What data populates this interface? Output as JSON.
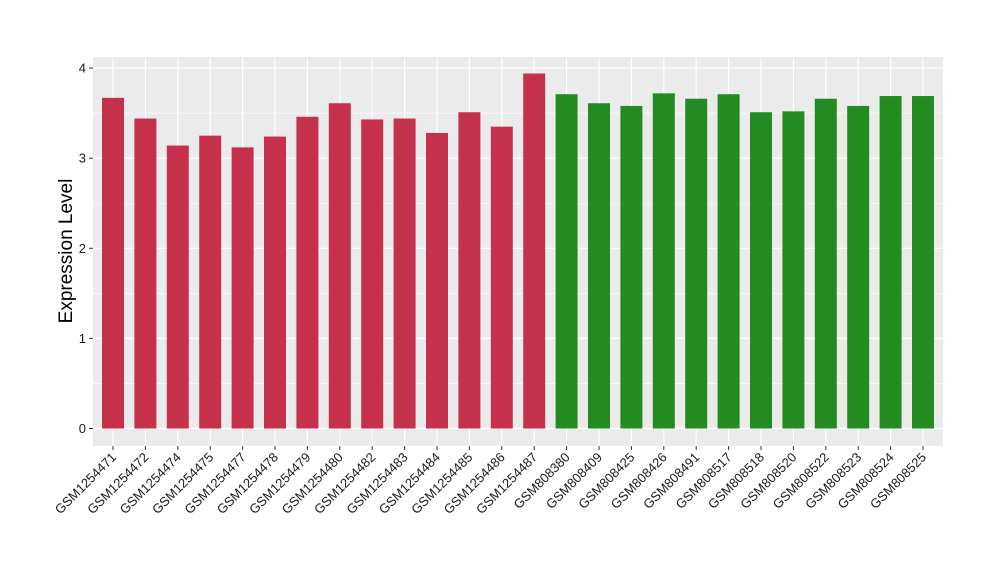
{
  "chart_data": {
    "type": "bar",
    "title": "",
    "xlabel": "",
    "ylabel": "Expression Level",
    "ylim": [
      0,
      4.1
    ],
    "yticks": [
      0,
      1,
      2,
      3,
      4
    ],
    "grid": true,
    "colors": {
      "group_a": "#c5314a",
      "group_b": "#228b22",
      "panel": "#ebebeb",
      "grid": "#ffffff"
    },
    "categories": [
      "GSM1254471",
      "GSM1254472",
      "GSM1254474",
      "GSM1254475",
      "GSM1254477",
      "GSM1254478",
      "GSM1254479",
      "GSM1254480",
      "GSM1254482",
      "GSM1254483",
      "GSM1254484",
      "GSM1254485",
      "GSM1254486",
      "GSM1254487",
      "GSM808380",
      "GSM808409",
      "GSM808425",
      "GSM808426",
      "GSM808491",
      "GSM808517",
      "GSM808518",
      "GSM808520",
      "GSM808522",
      "GSM808523",
      "GSM808524",
      "GSM808525"
    ],
    "values": [
      3.67,
      3.44,
      3.14,
      3.25,
      3.12,
      3.24,
      3.46,
      3.61,
      3.43,
      3.44,
      3.28,
      3.51,
      3.35,
      3.94,
      3.71,
      3.61,
      3.58,
      3.72,
      3.66,
      3.71,
      3.51,
      3.52,
      3.66,
      3.58,
      3.69,
      3.69
    ],
    "groups": [
      "a",
      "a",
      "a",
      "a",
      "a",
      "a",
      "a",
      "a",
      "a",
      "a",
      "a",
      "a",
      "a",
      "a",
      "b",
      "b",
      "b",
      "b",
      "b",
      "b",
      "b",
      "b",
      "b",
      "b",
      "b",
      "b"
    ]
  }
}
